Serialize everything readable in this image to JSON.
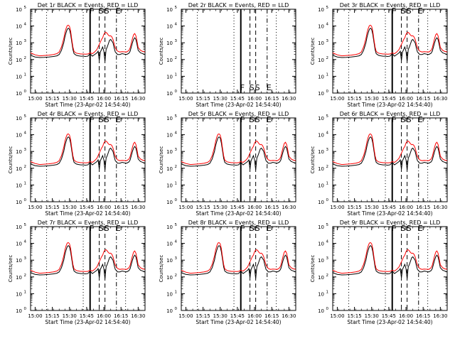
{
  "figure": {
    "xlabel_template": "Start Time ({start})",
    "start_time": "23-Apr-02 14:54:40",
    "ylabel": "Counts/sec",
    "legend_text": "BLACK = Events, RED = LLD"
  },
  "colors": {
    "events": "#000000",
    "lld": "#ff0000",
    "axes": "#000000",
    "background": "#ffffff"
  },
  "chart_data": {
    "type": "line",
    "grid": "3x3",
    "x_unit": "minutes",
    "xlim": [
      896,
      996
    ],
    "x_tick_values": [
      900,
      915,
      930,
      945,
      960,
      975,
      990
    ],
    "x_tick_labels": [
      "15:00",
      "15:15",
      "15:30",
      "15:45",
      "16:00",
      "16:15",
      "16:30"
    ],
    "y_scale": "log",
    "ylim_exponent": [
      0,
      5
    ],
    "y_tick_labels": [
      "10^0",
      "10^1",
      "10^2",
      "10^3",
      "10^4",
      "10^5"
    ],
    "markers": [
      {
        "kind": "dotted",
        "x": 910,
        "label": ""
      },
      {
        "kind": "dotted",
        "x": 942,
        "label": ""
      },
      {
        "kind": "solid",
        "x": 948,
        "label": "F"
      },
      {
        "kind": "dashed",
        "x": 956,
        "label": "S"
      },
      {
        "kind": "dashed",
        "x": 961,
        "label": "S"
      },
      {
        "kind": "dashdot",
        "x": 971,
        "label": "E"
      },
      {
        "kind": "dotted",
        "x": 979,
        "label": ""
      }
    ],
    "series_template": {
      "x": [
        896,
        900,
        904,
        908,
        912,
        916,
        919,
        921,
        923,
        925,
        926,
        927,
        928,
        929,
        930,
        931,
        932,
        933,
        934,
        936,
        938,
        940,
        942,
        944,
        946,
        948,
        950,
        952,
        954,
        955,
        956,
        957,
        958,
        959,
        960,
        961,
        962,
        963,
        964,
        965,
        966,
        967,
        968,
        969,
        970,
        972,
        974,
        976,
        978,
        980,
        982,
        983,
        984,
        985,
        986,
        987,
        988,
        989,
        990,
        992,
        994,
        996
      ],
      "events_log10": [
        2.25,
        2.15,
        2.12,
        2.13,
        2.15,
        2.18,
        2.22,
        2.3,
        2.55,
        3.0,
        3.35,
        3.6,
        3.8,
        3.87,
        3.8,
        3.5,
        3.05,
        2.6,
        2.35,
        2.25,
        2.22,
        2.2,
        2.2,
        2.18,
        2.2,
        2.35,
        2.2,
        2.3,
        2.4,
        2.5,
        1.95,
        2.45,
        2.6,
        2.75,
        2.5,
        1.9,
        2.6,
        2.75,
        2.95,
        3.15,
        3.2,
        3.1,
        3.0,
        2.7,
        2.45,
        2.3,
        2.3,
        2.35,
        2.32,
        2.3,
        2.38,
        2.5,
        2.75,
        3.0,
        3.2,
        3.3,
        3.2,
        2.9,
        2.55,
        2.4,
        2.35,
        2.3
      ],
      "lld_log10": [
        2.4,
        2.28,
        2.22,
        2.24,
        2.26,
        2.3,
        2.35,
        2.45,
        2.75,
        3.25,
        3.6,
        3.85,
        4.02,
        4.05,
        3.98,
        3.7,
        3.2,
        2.75,
        2.48,
        2.38,
        2.35,
        2.33,
        2.33,
        2.32,
        2.33,
        2.4,
        2.35,
        2.45,
        2.6,
        2.75,
        2.9,
        3.05,
        3.2,
        3.3,
        3.5,
        3.6,
        3.62,
        3.55,
        3.45,
        3.4,
        3.42,
        3.35,
        3.2,
        2.95,
        2.7,
        2.5,
        2.45,
        2.47,
        2.46,
        2.45,
        2.55,
        2.7,
        2.98,
        3.25,
        3.48,
        3.55,
        3.42,
        3.1,
        2.72,
        2.55,
        2.48,
        2.45
      ]
    },
    "panels": [
      {
        "title": "Det 1r BLACK = Events, RED = LLD",
        "title_detector": "Det 1r",
        "series": [
          {
            "name": "Events",
            "color": "black"
          },
          {
            "name": "LLD",
            "color": "red"
          }
        ],
        "scale": 0.0,
        "empty": false
      },
      {
        "title": "Det 2r BLACK = Events, RED = LLD",
        "title_detector": "Det 2r",
        "series": [],
        "scale": 0.0,
        "empty": true
      },
      {
        "title": "Det 3r BLACK = Events, RED = LLD",
        "title_detector": "Det 3r",
        "series": [
          {
            "name": "Events",
            "color": "black"
          },
          {
            "name": "LLD",
            "color": "red"
          }
        ],
        "scale": 0.0,
        "empty": false
      },
      {
        "title": "Det 4r BLACK = Events, RED = LLD",
        "title_detector": "Det 4r",
        "series": [
          {
            "name": "Events",
            "color": "black"
          },
          {
            "name": "LLD",
            "color": "red"
          }
        ],
        "scale": 0.0,
        "empty": false
      },
      {
        "title": "Det 5r BLACK = Events, RED = LLD",
        "title_detector": "Det 5r",
        "series": [
          {
            "name": "Events",
            "color": "black"
          },
          {
            "name": "LLD",
            "color": "red"
          }
        ],
        "scale": 0.0,
        "empty": false
      },
      {
        "title": "Det 6r BLACK = Events, RED = LLD",
        "title_detector": "Det 6r",
        "series": [
          {
            "name": "Events",
            "color": "black"
          },
          {
            "name": "LLD",
            "color": "red"
          }
        ],
        "scale": 0.0,
        "empty": false
      },
      {
        "title": "Det 7r BLACK = Events, RED = LLD",
        "title_detector": "Det 7r",
        "series": [
          {
            "name": "Events",
            "color": "black"
          },
          {
            "name": "LLD",
            "color": "red"
          }
        ],
        "scale": 0.0,
        "empty": false
      },
      {
        "title": "Det 8r BLACK = Events, RED = LLD",
        "title_detector": "Det 8r",
        "series": [
          {
            "name": "Events",
            "color": "black"
          },
          {
            "name": "LLD",
            "color": "red"
          }
        ],
        "scale": 0.0,
        "empty": false
      },
      {
        "title": "Det 9r BLACK = Events, RED = LLD",
        "title_detector": "Det 9r",
        "series": [
          {
            "name": "Events",
            "color": "black"
          },
          {
            "name": "LLD",
            "color": "red"
          }
        ],
        "scale": 0.0,
        "empty": false
      }
    ]
  }
}
